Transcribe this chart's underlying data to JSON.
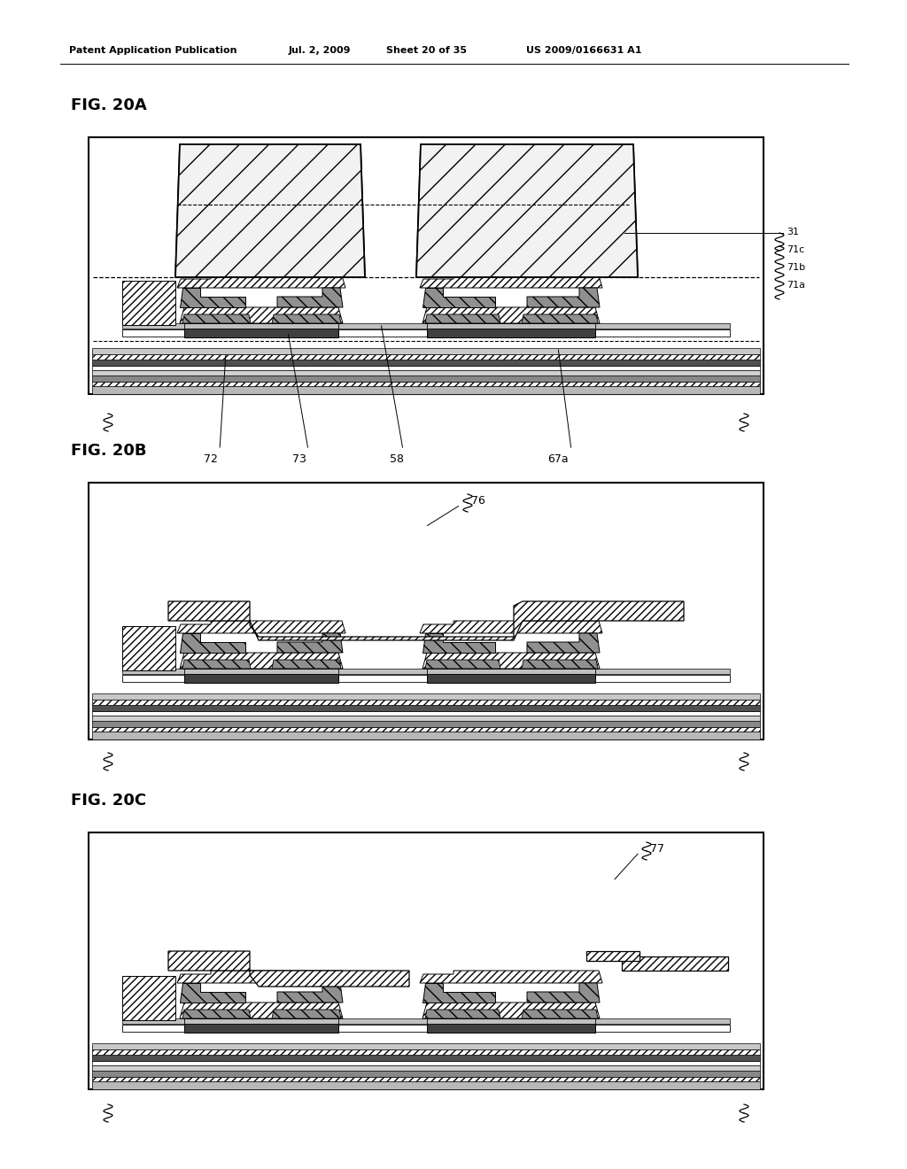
{
  "header_left": "Patent Application Publication",
  "header_mid1": "Jul. 2, 2009",
  "header_mid2": "Sheet 20 of 35",
  "header_right": "US 2009/0166631 A1",
  "fig_a_label": "FIG. 20A",
  "fig_b_label": "FIG. 20B",
  "fig_c_label": "FIG. 20C",
  "labels_a_bottom": [
    "72",
    "73",
    "58",
    "67a"
  ],
  "label_76": "76",
  "label_77": "77",
  "label_31": "31",
  "label_71c": "71c",
  "label_71b": "71b",
  "label_71a": "71a",
  "col_white": "#ffffff",
  "col_black": "#000000",
  "col_dark": "#404040",
  "col_mid": "#808080",
  "col_lgray": "#c0c0c0",
  "col_hatch_bg": "#f0f0f0"
}
